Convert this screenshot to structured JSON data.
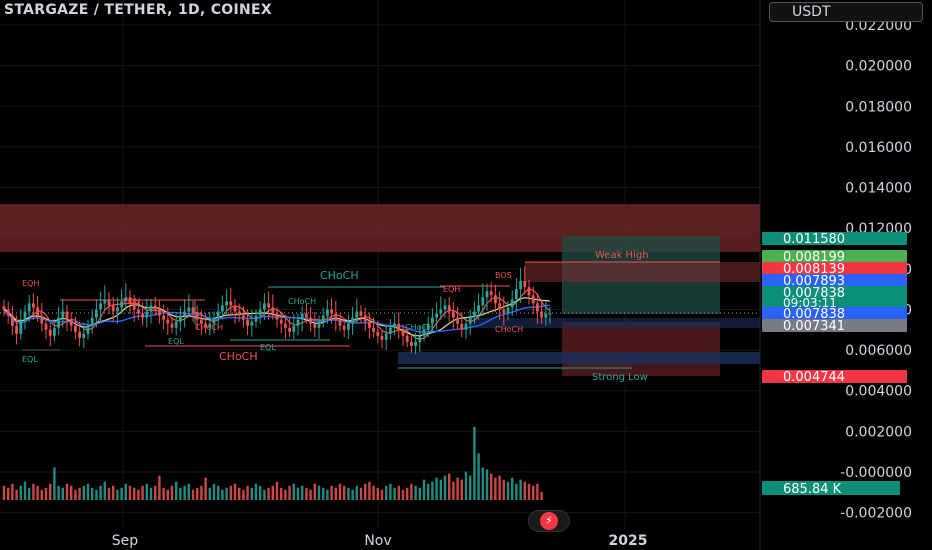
{
  "header": {
    "title": "STARGAZE / TETHER, 1D, COINEX",
    "currency": "USDT"
  },
  "colors": {
    "up": "#26a69a",
    "down": "#ef5350",
    "grid": "#161616",
    "axis_text": "#d1d4dc",
    "supply_zone": "#7a2b2e",
    "long_green": "#1f4d45",
    "short_red": "#5a1d21",
    "tag_green": "#0b8f77",
    "tag_red": "#f23645",
    "tag_blue": "#2962ff",
    "tag_gray": "#787b86",
    "tag_lightgreen": "#4caf50"
  },
  "chart_data": {
    "type": "candlestick",
    "y_ticks": [
      "0.022000",
      "0.020000",
      "0.018000",
      "0.016000",
      "0.014000",
      "0.012000",
      "0.010000",
      "0.008000",
      "0.006000",
      "0.004000",
      "0.002000",
      "-0.000000",
      "-0.002000"
    ],
    "y_tick_values": [
      0.022,
      0.02,
      0.018,
      0.016,
      0.014,
      0.012,
      0.01,
      0.008,
      0.006,
      0.004,
      0.002,
      0.0,
      -0.002
    ],
    "ylim": [
      -0.0026,
      0.0228
    ],
    "x_labels": [
      "Sep",
      "Nov",
      "2025"
    ],
    "price_tags": [
      {
        "label": "0.011580",
        "value": 0.01158,
        "color": "#0b8f77"
      },
      {
        "label": "0.008199",
        "value": 0.008199,
        "color": "#4caf50"
      },
      {
        "label": "0.008139",
        "value": 0.008139,
        "color": "#f23645"
      },
      {
        "label": "0.007893",
        "value": 0.007893,
        "color": "#2962ff"
      },
      {
        "label": "0.007838",
        "value": 0.007838,
        "color": "#0b8f77",
        "sub": "09:03:11"
      },
      {
        "label": "0.007838",
        "value": 0.007838,
        "color": "#2962ff"
      },
      {
        "label": "0.007341",
        "value": 0.007341,
        "color": "#787b86"
      },
      {
        "label": "0.004744",
        "value": 0.004744,
        "color": "#f23645"
      }
    ],
    "volume_label": "685.84 K",
    "annotations": [
      {
        "text": "CHoCH",
        "color": "#26a69a"
      },
      {
        "text": "CHoCH",
        "color": "#ef5350"
      },
      {
        "text": "Weak High",
        "color": "#ef5350"
      },
      {
        "text": "Strong Low",
        "color": "#26a69a"
      },
      {
        "text": "EQL",
        "color": "#26a69a"
      },
      {
        "text": "EQH",
        "color": "#ef5350"
      },
      {
        "text": "BOS",
        "color": "#ef5350"
      }
    ],
    "close_series": [
      0.008,
      0.0077,
      0.0072,
      0.0068,
      0.0074,
      0.0079,
      0.0083,
      0.0081,
      0.0077,
      0.0073,
      0.007,
      0.0067,
      0.0071,
      0.0076,
      0.0079,
      0.0075,
      0.0072,
      0.0069,
      0.0066,
      0.0068,
      0.0072,
      0.0076,
      0.008,
      0.0083,
      0.0085,
      0.0082,
      0.0079,
      0.0081,
      0.0084,
      0.0086,
      0.0083,
      0.008,
      0.0078,
      0.0076,
      0.0079,
      0.0082,
      0.008,
      0.0077,
      0.0075,
      0.0073,
      0.0071,
      0.0074,
      0.0077,
      0.0079,
      0.0081,
      0.0078,
      0.0075,
      0.0073,
      0.0071,
      0.0073,
      0.0076,
      0.0079,
      0.0082,
      0.0084,
      0.0082,
      0.0079,
      0.0077,
      0.0075,
      0.0072,
      0.0074,
      0.0077,
      0.008,
      0.0083,
      0.0081,
      0.0078,
      0.0075,
      0.0073,
      0.0071,
      0.0069,
      0.0072,
      0.0075,
      0.0078,
      0.0076,
      0.0073,
      0.0071,
      0.0074,
      0.0077,
      0.008,
      0.0078,
      0.0075,
      0.0072,
      0.007,
      0.0073,
      0.0076,
      0.0079,
      0.0077,
      0.0074,
      0.0071,
      0.0069,
      0.0067,
      0.0065,
      0.0068,
      0.0071,
      0.0073,
      0.007,
      0.0067,
      0.0064,
      0.0062,
      0.0064,
      0.0067,
      0.007,
      0.0073,
      0.0076,
      0.0078,
      0.008,
      0.0082,
      0.0079,
      0.0076,
      0.0073,
      0.007,
      0.0073,
      0.0076,
      0.0079,
      0.0082,
      0.0086,
      0.0089,
      0.0087,
      0.0083,
      0.008,
      0.0078,
      0.0081,
      0.0085,
      0.009,
      0.0094,
      0.0091,
      0.0087,
      0.0083,
      0.0079,
      0.0076,
      0.0078,
      0.0078
    ],
    "volume_series": [
      0.07,
      0.06,
      0.08,
      0.05,
      0.07,
      0.09,
      0.06,
      0.08,
      0.07,
      0.05,
      0.06,
      0.08,
      0.16,
      0.07,
      0.06,
      0.08,
      0.07,
      0.05,
      0.06,
      0.07,
      0.08,
      0.06,
      0.05,
      0.07,
      0.09,
      0.06,
      0.07,
      0.05,
      0.06,
      0.08,
      0.07,
      0.06,
      0.05,
      0.07,
      0.08,
      0.06,
      0.07,
      0.12,
      0.06,
      0.05,
      0.07,
      0.09,
      0.06,
      0.07,
      0.08,
      0.05,
      0.06,
      0.07,
      0.11,
      0.06,
      0.08,
      0.07,
      0.05,
      0.06,
      0.07,
      0.08,
      0.06,
      0.05,
      0.07,
      0.06,
      0.08,
      0.07,
      0.05,
      0.06,
      0.07,
      0.09,
      0.06,
      0.05,
      0.07,
      0.08,
      0.06,
      0.07,
      0.06,
      0.05,
      0.08,
      0.07,
      0.06,
      0.05,
      0.07,
      0.06,
      0.08,
      0.07,
      0.06,
      0.05,
      0.07,
      0.06,
      0.08,
      0.09,
      0.07,
      0.06,
      0.05,
      0.07,
      0.08,
      0.06,
      0.07,
      0.05,
      0.06,
      0.08,
      0.07,
      0.06,
      0.1,
      0.08,
      0.09,
      0.11,
      0.1,
      0.12,
      0.13,
      0.09,
      0.11,
      0.1,
      0.14,
      0.12,
      0.36,
      0.23,
      0.16,
      0.15,
      0.13,
      0.11,
      0.12,
      0.1,
      0.09,
      0.11,
      0.08,
      0.1,
      0.09,
      0.08,
      0.07,
      0.08,
      0.04
    ],
    "volume_scale_max": 0.004
  }
}
